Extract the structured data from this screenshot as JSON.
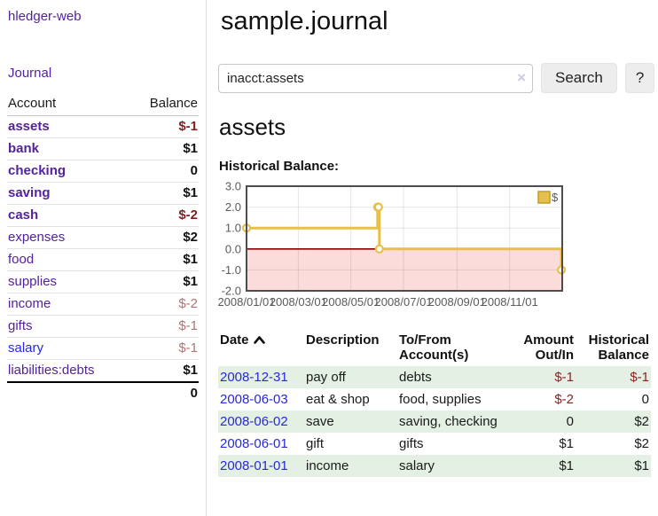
{
  "app": {
    "brand": "hledger-web",
    "nav_journal": "Journal"
  },
  "colors": {
    "link_purple": "#54229b",
    "link_blue": "#2828dc",
    "negative_strong": "#801f1f",
    "negative_soft": "#b57272",
    "negative_table": "#8b2222",
    "row_stripe_green": "#e3f0e3",
    "chart_line_gold": "#e6c04a",
    "chart_negative_fill": "#fcdbdb",
    "chart_zero_line": "#8b0000"
  },
  "sidebar": {
    "header_account": "Account",
    "header_balance": "Balance",
    "accounts": [
      {
        "name": "assets",
        "balance": "$-1",
        "level": 1,
        "bold": true,
        "balance_style": "neg-strong"
      },
      {
        "name": "bank",
        "balance": "$1",
        "level": 2,
        "bold": true,
        "balance_style": ""
      },
      {
        "name": "checking",
        "balance": "0",
        "level": 3,
        "bold": true,
        "balance_style": ""
      },
      {
        "name": "saving",
        "balance": "$1",
        "level": 3,
        "bold": true,
        "balance_style": ""
      },
      {
        "name": "cash",
        "balance": "$-2",
        "level": 2,
        "bold": true,
        "balance_style": "neg-strong"
      },
      {
        "name": "expenses",
        "balance": "$2",
        "level": 1,
        "bold": false,
        "balance_style": "plain"
      },
      {
        "name": "food",
        "balance": "$1",
        "level": 2,
        "bold": false,
        "balance_style": "plain"
      },
      {
        "name": "supplies",
        "balance": "$1",
        "level": 2,
        "bold": false,
        "balance_style": "plain"
      },
      {
        "name": "income",
        "balance": "$-2",
        "level": 1,
        "bold": false,
        "balance_style": "neg-soft"
      },
      {
        "name": "gifts",
        "balance": "$-1",
        "level": 2,
        "bold": false,
        "balance_style": "neg-soft"
      },
      {
        "name": "salary",
        "balance": "$-1",
        "level": 2,
        "bold": false,
        "balance_style": "neg-soft",
        "link_color": "blue"
      },
      {
        "name": "liabilities:debts",
        "balance": "$1",
        "level": 1,
        "bold": false,
        "balance_style": "plain"
      }
    ],
    "total": "0"
  },
  "header": {
    "title": "sample.journal"
  },
  "search": {
    "value": "inacct:assets",
    "clear_icon": "×",
    "button_label": "Search",
    "help_label": "?"
  },
  "account_page": {
    "title": "assets",
    "chart_label": "Historical Balance:"
  },
  "chart_data": {
    "type": "line",
    "title": "Historical Balance:",
    "step": true,
    "legend": {
      "label": "$",
      "position": "top-right"
    },
    "ylim": [
      -2,
      3
    ],
    "y_ticks": [
      "3.0",
      "2.0",
      "1.0",
      "0.0",
      "-1.0",
      "-2.0"
    ],
    "y_tick_values": [
      3,
      2,
      1,
      0,
      -1,
      -2
    ],
    "x_domain_days": [
      0,
      366
    ],
    "x_ticks": [
      {
        "label": "2008/01/01",
        "day": 0
      },
      {
        "label": "2008/03/01",
        "day": 60
      },
      {
        "label": "2008/05/01",
        "day": 121
      },
      {
        "label": "2008/07/01",
        "day": 182
      },
      {
        "label": "2008/09/01",
        "day": 244
      },
      {
        "label": "2008/11/01",
        "day": 305
      }
    ],
    "series": [
      {
        "name": "$",
        "points": [
          {
            "date": "2008-01-01",
            "day": 0,
            "value": 1
          },
          {
            "date": "2008-06-01",
            "day": 152,
            "value": 2
          },
          {
            "date": "2008-06-02",
            "day": 153,
            "value": 2
          },
          {
            "date": "2008-06-03",
            "day": 154,
            "value": 0
          },
          {
            "date": "2008-12-31",
            "day": 365,
            "value": -1
          }
        ]
      }
    ],
    "negative_region_shaded": true,
    "grid": true
  },
  "register": {
    "headers": [
      {
        "label": "Date",
        "align": "left",
        "sorted_asc": true
      },
      {
        "label": "Description",
        "align": "left"
      },
      {
        "label": "To/From Account(s)",
        "align": "left"
      },
      {
        "label": "Amount Out/In",
        "align": "right"
      },
      {
        "label": "Historical Balance",
        "align": "right"
      }
    ],
    "rows": [
      {
        "date": "2008-12-31",
        "description": "pay off",
        "accounts": "debts",
        "amount": "$-1",
        "amount_neg": true,
        "balance": "$-1",
        "balance_neg": true
      },
      {
        "date": "2008-06-03",
        "description": "eat & shop",
        "accounts": "food, supplies",
        "amount": "$-2",
        "amount_neg": true,
        "balance": "0",
        "balance_neg": false
      },
      {
        "date": "2008-06-02",
        "description": "save",
        "accounts": "saving, checking",
        "amount": "0",
        "amount_neg": false,
        "balance": "$2",
        "balance_neg": false
      },
      {
        "date": "2008-06-01",
        "description": "gift",
        "accounts": "gifts",
        "amount": "$1",
        "amount_neg": false,
        "balance": "$2",
        "balance_neg": false
      },
      {
        "date": "2008-01-01",
        "description": "income",
        "accounts": "salary",
        "amount": "$1",
        "amount_neg": false,
        "balance": "$1",
        "balance_neg": false
      }
    ]
  }
}
